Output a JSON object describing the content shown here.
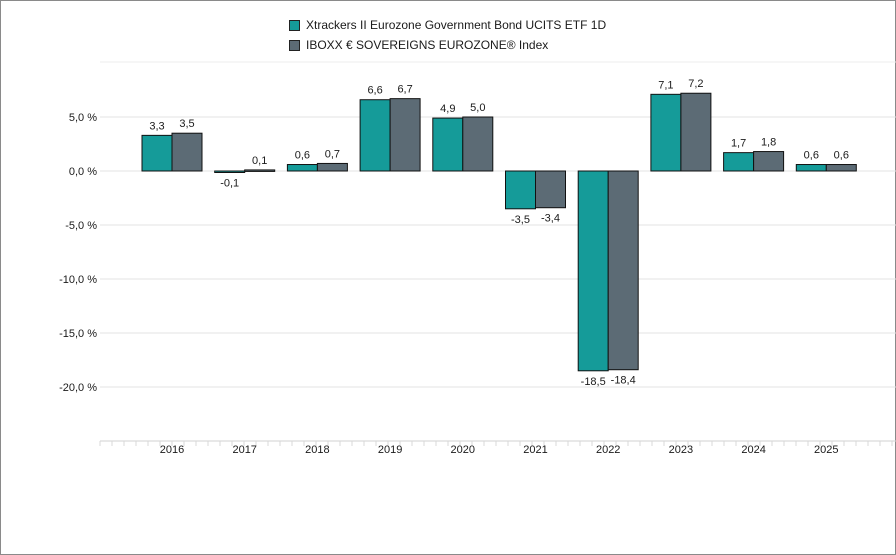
{
  "chart_data": {
    "type": "bar",
    "categories": [
      "2016",
      "2017",
      "2018",
      "2019",
      "2020",
      "2021",
      "2022",
      "2023",
      "2024",
      "2025"
    ],
    "series": [
      {
        "name": "Xtrackers II Eurozone Government Bond UCITS ETF 1D",
        "color": "#159b99",
        "values": [
          3.3,
          -0.1,
          0.6,
          6.6,
          4.9,
          -3.5,
          -18.5,
          7.1,
          1.7,
          0.6
        ],
        "labels": [
          "3,3",
          "-0,1",
          "0,6",
          "6,6",
          "4,9",
          "-3,5",
          "-18,5",
          "7,1",
          "1,7",
          "0,6"
        ]
      },
      {
        "name": "IBOXX € SOVEREIGNS EUROZONE® Index",
        "color": "#5c6b75",
        "values": [
          3.5,
          0.1,
          0.7,
          6.7,
          5.0,
          -3.4,
          -18.4,
          7.2,
          1.8,
          0.6
        ],
        "labels": [
          "3,5",
          "0,1",
          "0,7",
          "6,7",
          "5,0",
          "-3,4",
          "-18,4",
          "7,2",
          "1,8",
          "0,6"
        ]
      }
    ],
    "yticks": [
      5,
      0,
      -5,
      -10,
      -15,
      -20
    ],
    "ytick_labels": [
      "5,0 %",
      "0,0 %",
      "-5,0 %",
      "-10,0 %",
      "-15,0 %",
      "-20,0 %"
    ],
    "ylim": [
      -25,
      10
    ],
    "grid": true,
    "legend": "top-center"
  }
}
